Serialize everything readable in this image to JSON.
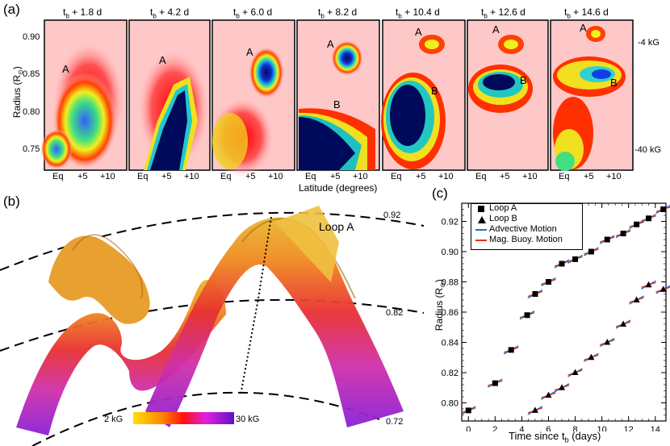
{
  "panel_a": {
    "label": "(a)",
    "frames": [
      {
        "title_base": "t",
        "title_sub": "b",
        "title_rest": " + 1.8 d",
        "labels": [
          "A"
        ]
      },
      {
        "title_base": "t",
        "title_sub": "b",
        "title_rest": " + 4.2 d",
        "labels": [
          "A"
        ]
      },
      {
        "title_base": "t",
        "title_sub": "b",
        "title_rest": " + 6.0 d",
        "labels": [
          "A"
        ]
      },
      {
        "title_base": "t",
        "title_sub": "b",
        "title_rest": " + 8.2 d",
        "labels": [
          "A",
          "B"
        ]
      },
      {
        "title_base": "t",
        "title_sub": "b",
        "title_rest": " + 10.4 d",
        "labels": [
          "A",
          "B"
        ]
      },
      {
        "title_base": "t",
        "title_sub": "b",
        "title_rest": " + 12.6 d",
        "labels": [
          "A",
          "B"
        ]
      },
      {
        "title_base": "t",
        "title_sub": "b",
        "title_rest": " + 14.6 d",
        "labels": [
          "A",
          "B"
        ]
      }
    ],
    "ylabel": "Radius (R",
    "ylabel_sub": "⊙",
    "ylabel_end": ")",
    "yticks": [
      "0.90",
      "0.85",
      "0.80",
      "0.75"
    ],
    "xticks": [
      "Eq",
      "+5",
      "+10"
    ],
    "xlabel": "Latitude (degrees)",
    "colorbar_top": "-4 kG",
    "colorbar_bottom": "-40 kG"
  },
  "panel_b": {
    "label": "(b)",
    "loop_label": "Loop A",
    "radius_labels": [
      "0.92",
      "0.82",
      "0.72"
    ],
    "colorbar_min": "2 kG",
    "colorbar_max": "30 kG"
  },
  "panel_c": {
    "label": "(c)",
    "ylabel": "Radius (R",
    "ylabel_sub": "⊙",
    "ylabel_end": ")",
    "xlabel": "Time since t",
    "xlabel_sub": "b",
    "xlabel_end": " (days)",
    "legend": [
      {
        "name": "Loop A",
        "marker": "square"
      },
      {
        "name": "Loop B",
        "marker": "triangle"
      },
      {
        "name": "Advective Motion",
        "color": "#1f6fd1"
      },
      {
        "name": "Mag. Buoy. Motion",
        "color": "#e0301e"
      }
    ]
  },
  "chart_data": {
    "type": "scatter",
    "xlabel": "Time since t_b (days)",
    "ylabel": "Radius (R_sun)",
    "xlim": [
      -0.5,
      14.8
    ],
    "ylim": [
      0.788,
      0.932
    ],
    "xticks": [
      0,
      2,
      4,
      6,
      8,
      10,
      12,
      14
    ],
    "yticks": [
      0.8,
      0.82,
      0.84,
      0.86,
      0.88,
      0.9,
      0.92
    ],
    "series": [
      {
        "name": "Loop A",
        "marker": "square",
        "x": [
          0,
          2,
          3.2,
          4.4,
          5,
          6,
          7,
          8,
          9.2,
          10.4,
          11.6,
          12.6,
          13.5,
          14.6
        ],
        "y": [
          0.795,
          0.813,
          0.835,
          0.858,
          0.872,
          0.88,
          0.892,
          0.895,
          0.9,
          0.908,
          0.912,
          0.918,
          0.922,
          0.928
        ]
      },
      {
        "name": "Loop B",
        "marker": "triangle",
        "x": [
          5,
          6,
          7,
          8,
          9.2,
          10.4,
          11.6,
          12.6,
          13.5,
          14.6
        ],
        "y": [
          0.795,
          0.805,
          0.81,
          0.82,
          0.83,
          0.84,
          0.852,
          0.868,
          0.878,
          0.875
        ]
      }
    ],
    "legend": [
      "Loop A",
      "Loop B",
      "Advective Motion",
      "Mag. Buoy. Motion"
    ],
    "legend_position": "top-left"
  }
}
